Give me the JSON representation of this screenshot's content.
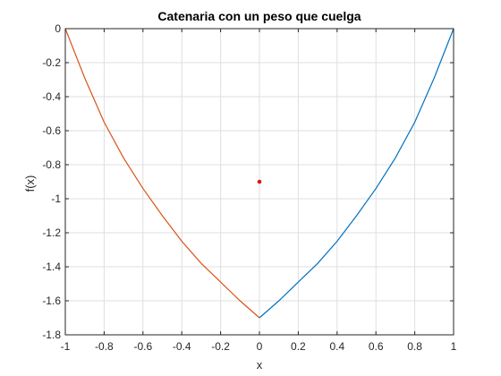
{
  "chart_data": {
    "type": "line",
    "title": "Catenaria con un peso que cuelga",
    "xlabel": "x",
    "ylabel": "f(x)",
    "xlim": [
      -1,
      1
    ],
    "ylim": [
      -1.8,
      0
    ],
    "grid": true,
    "xticks": [
      -1,
      -0.8,
      -0.6,
      -0.4,
      -0.2,
      0,
      0.2,
      0.4,
      0.6,
      0.8,
      1
    ],
    "xtick_labels": [
      "-1",
      "-0.8",
      "-0.6",
      "-0.4",
      "-0.2",
      "0",
      "0.2",
      "0.4",
      "0.6",
      "0.8",
      "1"
    ],
    "yticks": [
      0,
      -0.2,
      -0.4,
      -0.6,
      -0.8,
      -1,
      -1.2,
      -1.4,
      -1.6,
      -1.8
    ],
    "ytick_labels": [
      "0",
      "-0.2",
      "-0.4",
      "-0.6",
      "-0.8",
      "-1",
      "-1.2",
      "-1.4",
      "-1.6",
      "-1.8"
    ],
    "series": [
      {
        "color": "#0072bd",
        "x": [
          0,
          0.1,
          0.2,
          0.3,
          0.4,
          0.5,
          0.6,
          0.7,
          0.8,
          0.9,
          1.0
        ],
        "y": [
          -1.7,
          -1.6,
          -1.49,
          -1.38,
          -1.25,
          -1.1,
          -0.94,
          -0.76,
          -0.55,
          -0.29,
          0
        ]
      },
      {
        "color": "#d95319",
        "x": [
          -1.0,
          -0.9,
          -0.8,
          -0.7,
          -0.6,
          -0.5,
          -0.4,
          -0.3,
          -0.2,
          -0.1,
          0
        ],
        "y": [
          0,
          -0.29,
          -0.55,
          -0.76,
          -0.94,
          -1.1,
          -1.25,
          -1.38,
          -1.49,
          -1.6,
          -1.7
        ]
      }
    ],
    "points": [
      {
        "x": 0,
        "y": -0.9,
        "color": "#e0141e"
      }
    ]
  }
}
